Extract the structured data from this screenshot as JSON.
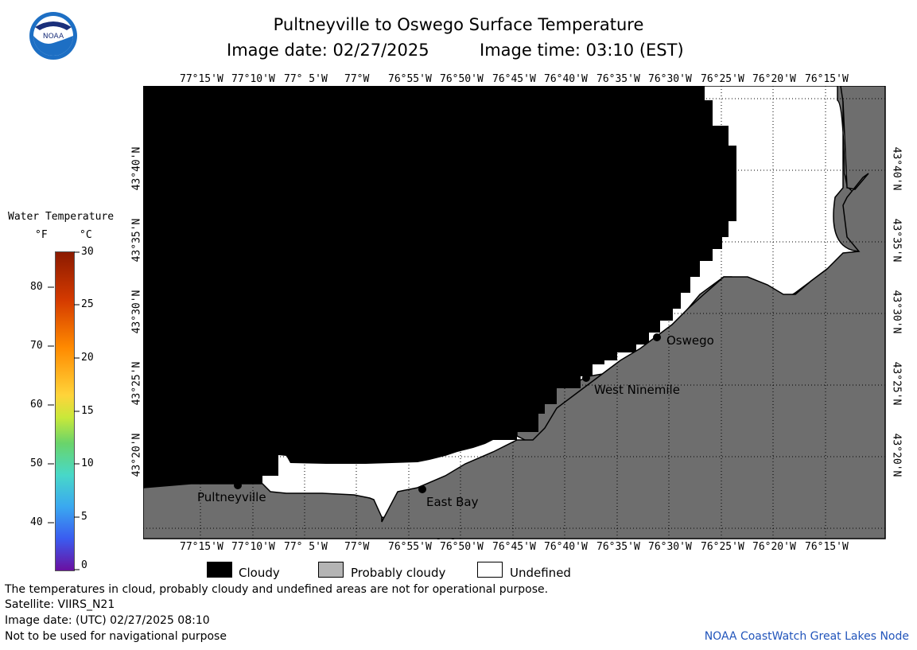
{
  "header": {
    "title": "Pultneyville to Oswego Surface Temperature",
    "date_label": "Image date: 02/27/2025",
    "time_label": "Image time: 03:10 (EST)"
  },
  "logo": {
    "text": "NOAA"
  },
  "legend_scale": {
    "title": "Water Temperature",
    "unit_f": "°F",
    "unit_c": "°C",
    "f_ticks": [
      "80",
      "70",
      "60",
      "50",
      "40"
    ],
    "c_ticks": [
      "30",
      "25",
      "20",
      "15",
      "10",
      "5",
      "0"
    ]
  },
  "map": {
    "lon_labels": [
      "77°15'W",
      "77°10'W",
      "77° 5'W",
      "77°W",
      "76°55'W",
      "76°50'W",
      "76°45'W",
      "76°40'W",
      "76°35'W",
      "76°30'W",
      "76°25'W",
      "76°20'W",
      "76°15'W"
    ],
    "lat_labels": [
      "43°40'N",
      "43°35'N",
      "43°30'N",
      "43°25'N",
      "43°20'N"
    ],
    "places": [
      {
        "name": "Pultneyville"
      },
      {
        "name": "East Bay"
      },
      {
        "name": "West Ninemile"
      },
      {
        "name": "Oswego"
      }
    ],
    "colors": {
      "cloudy": "#000000",
      "land": "#6e6e6e",
      "undefined": "#ffffff"
    }
  },
  "key": {
    "cloudy": "Cloudy",
    "probably_cloudy": "Probably cloudy",
    "undefined": "Undefined"
  },
  "footer": {
    "note": "The temperatures in cloud, probably cloudy and undefined areas are not for operational purpose.",
    "satellite": "Satellite: VIIRS_N21",
    "utc_date": "Image date: (UTC) 02/27/2025  08:10",
    "nav": "Not to be used for navigational purpose",
    "credit": "NOAA CoastWatch Great Lakes Node"
  }
}
